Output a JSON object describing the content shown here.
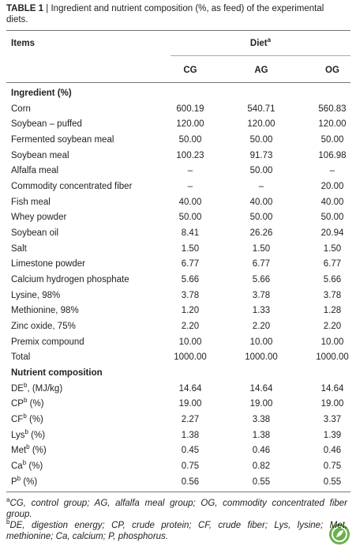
{
  "title": {
    "label": "TABLE 1",
    "separator": "|",
    "text": "Ingredient and nutrient composition (%, as feed) of the experimental diets."
  },
  "header": {
    "items": "Items",
    "diet": "Diet",
    "diet_sup": "a",
    "columns": [
      "CG",
      "AG",
      "OG"
    ]
  },
  "sections": [
    {
      "title": "Ingredient (%)",
      "rows": [
        {
          "label": "Corn",
          "values": [
            "600.19",
            "540.71",
            "560.83"
          ]
        },
        {
          "label": "Soybean – puffed",
          "values": [
            "120.00",
            "120.00",
            "120.00"
          ]
        },
        {
          "label": "Fermented soybean meal",
          "values": [
            "50.00",
            "50.00",
            "50.00"
          ]
        },
        {
          "label": "Soybean meal",
          "values": [
            "100.23",
            "91.73",
            "106.98"
          ]
        },
        {
          "label": "Alfalfa meal",
          "values": [
            "–",
            "50.00",
            "–"
          ]
        },
        {
          "label": "Commodity concentrated fiber",
          "values": [
            "–",
            "–",
            "20.00"
          ]
        },
        {
          "label": "Fish meal",
          "values": [
            "40.00",
            "40.00",
            "40.00"
          ]
        },
        {
          "label": "Whey powder",
          "values": [
            "50.00",
            "50.00",
            "50.00"
          ]
        },
        {
          "label": "Soybean oil",
          "values": [
            "8.41",
            "26.26",
            "20.94"
          ]
        },
        {
          "label": "Salt",
          "values": [
            "1.50",
            "1.50",
            "1.50"
          ]
        },
        {
          "label": "Limestone powder",
          "values": [
            "6.77",
            "6.77",
            "6.77"
          ]
        },
        {
          "label": "Calcium hydrogen phosphate",
          "values": [
            "5.66",
            "5.66",
            "5.66"
          ]
        },
        {
          "label": "Lysine, 98%",
          "values": [
            "3.78",
            "3.78",
            "3.78"
          ]
        },
        {
          "label": "Methionine, 98%",
          "values": [
            "1.20",
            "1.33",
            "1.28"
          ]
        },
        {
          "label": "Zinc oxide, 75%",
          "values": [
            "2.20",
            "2.20",
            "2.20"
          ]
        },
        {
          "label": "Premix compound",
          "values": [
            "10.00",
            "10.00",
            "10.00"
          ]
        },
        {
          "label": "Total",
          "values": [
            "1000.00",
            "1000.00",
            "1000.00"
          ]
        }
      ]
    },
    {
      "title": "Nutrient composition",
      "rows": [
        {
          "label": "DE",
          "sup": "b",
          "suffix": ", (MJ/kg)",
          "values": [
            "14.64",
            "14.64",
            "14.64"
          ]
        },
        {
          "label": "CP",
          "sup": "b",
          "suffix": " (%)",
          "values": [
            "19.00",
            "19.00",
            "19.00"
          ]
        },
        {
          "label": "CF",
          "sup": "b",
          "suffix": " (%)",
          "values": [
            "2.27",
            "3.38",
            "3.37"
          ]
        },
        {
          "label": "Lys",
          "sup": "b",
          "suffix": " (%)",
          "values": [
            "1.38",
            "1.38",
            "1.39"
          ]
        },
        {
          "label": "Met",
          "sup": "b",
          "suffix": " (%)",
          "values": [
            "0.45",
            "0.46",
            "0.46"
          ]
        },
        {
          "label": "Ca",
          "sup": "b",
          "suffix": " (%)",
          "values": [
            "0.75",
            "0.82",
            "0.75"
          ]
        },
        {
          "label": "P",
          "sup": "b",
          "suffix": " (%)",
          "values": [
            "0.56",
            "0.55",
            "0.55"
          ]
        }
      ]
    }
  ],
  "footnotes": [
    {
      "mark": "a",
      "text": "CG, control group; AG, alfalfa meal group; OG, commodity concentrated fiber group."
    },
    {
      "mark": "b",
      "text": "DE, digestion energy; CP, crude protein; CF, crude fiber; Lys, lysine; Met, methionine; Ca, calcium; P, phosphorus."
    }
  ]
}
